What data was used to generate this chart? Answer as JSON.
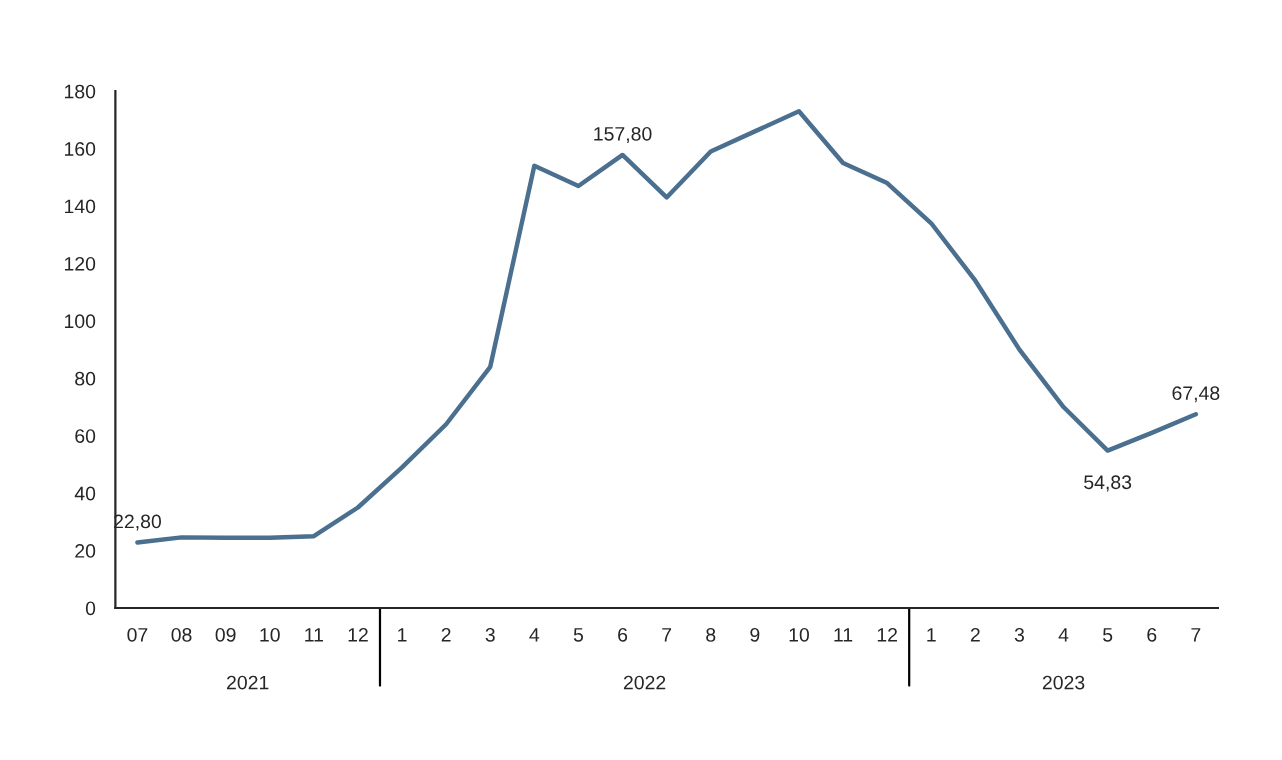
{
  "chart_data": {
    "type": "line",
    "categories": [
      "07",
      "08",
      "09",
      "10",
      "11",
      "12",
      "1",
      "2",
      "3",
      "4",
      "5",
      "6",
      "7",
      "8",
      "9",
      "10",
      "11",
      "12",
      "1",
      "2",
      "3",
      "4",
      "5",
      "6",
      "7"
    ],
    "series": [
      {
        "color": "#4a6f8f",
        "values": [
          22.8,
          24.6,
          24.5,
          24.5,
          25,
          35,
          49,
          64,
          84,
          154,
          147,
          157.8,
          143,
          159,
          166,
          173,
          155,
          148,
          134,
          114,
          90,
          70,
          54.83,
          61,
          67.48
        ],
        "value_labels": [
          "22,80",
          null,
          null,
          null,
          null,
          null,
          null,
          null,
          null,
          null,
          null,
          "157,80",
          null,
          null,
          null,
          null,
          null,
          null,
          null,
          null,
          null,
          null,
          "54,83",
          null,
          "67,48"
        ]
      }
    ],
    "ylim": [
      0,
      180
    ],
    "yticks": [
      0,
      20,
      40,
      60,
      80,
      100,
      120,
      140,
      160,
      180
    ],
    "annotations": [
      "2021",
      "2022",
      "2023"
    ],
    "grid": false,
    "legend": false
  }
}
